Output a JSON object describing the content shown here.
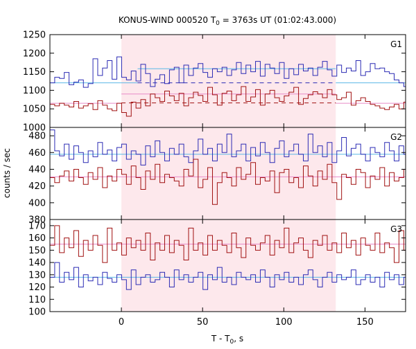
{
  "chart_data": {
    "type": "line",
    "title": {
      "prefix": "KONUS-WIND 000520 T",
      "sub": "0",
      "suffix": " = 3763s UT (01:02:43.000)"
    },
    "xlabel": {
      "prefix": "T - T",
      "sub": "0",
      "suffix": ", s"
    },
    "ylabel": "counts / sec",
    "xlim": [
      -44,
      175
    ],
    "xticks": [
      0,
      50,
      100,
      150
    ],
    "highlight_region": {
      "x": [
        0,
        132
      ],
      "color": "#fde8ec"
    },
    "colors": {
      "blue": "#2b2bb4",
      "red": "#a01010",
      "blue_fit": "#5bb8e6",
      "red_fit": "#e88ac8"
    },
    "panels": [
      {
        "label": "G1",
        "ylim": [
          1000,
          1250
        ],
        "yticks": [
          1000,
          1050,
          1100,
          1150,
          1200,
          1250
        ],
        "series": [
          {
            "color": "blue",
            "bin": 2.944,
            "start": -44,
            "values": [
              1120,
              1135,
              1132,
              1148,
              1115,
              1122,
              1128,
              1108,
              1118,
              1185,
              1140,
              1160,
              1180,
              1130,
              1190,
              1135,
              1128,
              1152,
              1125,
              1170,
              1145,
              1110,
              1130,
              1142,
              1118,
              1155,
              1162,
              1120,
              1168,
              1140,
              1160,
              1172,
              1148,
              1135,
              1158,
              1150,
              1162,
              1140,
              1155,
              1175,
              1145,
              1168,
              1150,
              1178,
              1138,
              1170,
              1160,
              1145,
              1175,
              1132,
              1158,
              1142,
              1170,
              1152,
              1160,
              1140,
              1162,
              1178,
              1155,
              1138,
              1168,
              1148,
              1160,
              1152,
              1180,
              1140,
              1150,
              1172,
              1158,
              1160,
              1150,
              1145,
              1128,
              1120,
              1110,
              1125,
              1118,
              1108,
              1122,
              1115,
              1112,
              1120,
              1118,
              1130
            ]
          },
          {
            "color": "red",
            "bin": 2.944,
            "start": -44,
            "values": [
              1062,
              1058,
              1065,
              1060,
              1055,
              1070,
              1052,
              1058,
              1064,
              1048,
              1072,
              1060,
              1050,
              1045,
              1065,
              1040,
              1030,
              1068,
              1052,
              1075,
              1058,
              1090,
              1080,
              1070,
              1098,
              1085,
              1072,
              1092,
              1058,
              1080,
              1095,
              1086,
              1070,
              1108,
              1088,
              1060,
              1092,
              1098,
              1072,
              1088,
              1110,
              1070,
              1082,
              1102,
              1060,
              1090,
              1100,
              1080,
              1070,
              1085,
              1095,
              1108,
              1062,
              1078,
              1088,
              1096,
              1090,
              1080,
              1102,
              1088,
              1075,
              1080,
              1095,
              1060,
              1072,
              1080,
              1070,
              1062,
              1058,
              1052,
              1048,
              1055,
              1062,
              1050,
              1068,
              1060,
              1055,
              1065,
              1070,
              1058,
              1060,
              1072,
              1066,
              1058
            ]
          }
        ],
        "fits": [
          {
            "color": "blue_fit",
            "dashed": false,
            "x": [
              -44,
              10
            ],
            "y": 1120
          },
          {
            "color": "blue_fit",
            "dashed": false,
            "x": [
              10,
              132
            ],
            "y": 1158
          },
          {
            "color": "blue_fit",
            "dashed": false,
            "x": [
              132,
              175
            ],
            "y": 1120
          },
          {
            "color": "red_fit",
            "dashed": false,
            "x": [
              -44,
              0
            ],
            "y": 1065
          },
          {
            "color": "red_fit",
            "dashed": false,
            "x": [
              0,
              132
            ],
            "y": 1090
          },
          {
            "color": "red_fit",
            "dashed": false,
            "x": [
              132,
              175
            ],
            "y": 1065
          },
          {
            "color": "blue",
            "dashed": true,
            "x": [
              10,
              132
            ],
            "y": 1120
          },
          {
            "color": "red",
            "dashed": true,
            "x": [
              0,
              132
            ],
            "y": 1066
          }
        ]
      },
      {
        "label": "G2",
        "ylim": [
          380,
          490
        ],
        "yticks": [
          380,
          400,
          420,
          440,
          460,
          480
        ],
        "series": [
          {
            "color": "blue",
            "bin": 2.944,
            "start": -44,
            "values": [
              487,
              462,
              456,
              470,
              452,
              468,
              460,
              448,
              462,
              455,
              472,
              458,
              463,
              450,
              466,
              470,
              452,
              462,
              458,
              445,
              468,
              455,
              474,
              460,
              450,
              465,
              458,
              470,
              455,
              448,
              462,
              476,
              458,
              465,
              450,
              470,
              460,
              482,
              455,
              462,
              470,
              450,
              466,
              456,
              472,
              460,
              448,
              465,
              474,
              455,
              462,
              470,
              458,
              450,
              482,
              460,
              468,
              455,
              472,
              448,
              462,
              478,
              456,
              465,
              470,
              458,
              450,
              466,
              460,
              455,
              472,
              462,
              450,
              468,
              458,
              464,
              470,
              455,
              460,
              458,
              472,
              465,
              478,
              462
            ]
          },
          {
            "color": "red",
            "bin": 2.944,
            "start": -44,
            "values": [
              430,
              424,
              432,
              438,
              426,
              440,
              430,
              422,
              436,
              428,
              442,
              418,
              432,
              426,
              440,
              434,
              422,
              444,
              430,
              416,
              438,
              428,
              446,
              424,
              434,
              430,
              426,
              420,
              440,
              432,
              452,
              418,
              428,
              442,
              398,
              424,
              436,
              430,
              420,
              442,
              428,
              434,
              448,
              422,
              430,
              426,
              438,
              412,
              436,
              440,
              424,
              430,
              418,
              444,
              432,
              420,
              438,
              428,
              446,
              424,
              404,
              434,
              430,
              422,
              440,
              436,
              418,
              432,
              428,
              442,
              420,
              436,
              426,
              430,
              440,
              424,
              434,
              428,
              420,
              438,
              430,
              444,
              426,
              436
            ]
          }
        ],
        "fits": [
          {
            "color": "blue_fit",
            "dashed": false,
            "x": [
              -44,
              175
            ],
            "y": 458
          },
          {
            "color": "red_fit",
            "dashed": false,
            "x": [
              -44,
              175
            ],
            "y": 431
          }
        ]
      },
      {
        "label": "G3",
        "ylim": [
          100,
          175
        ],
        "yticks": [
          100,
          110,
          120,
          130,
          140,
          150,
          160,
          170
        ],
        "series": [
          {
            "color": "blue",
            "bin": 2.944,
            "start": -44,
            "values": [
              128,
              140,
              124,
              132,
              126,
              136,
              120,
              130,
              125,
              128,
              122,
              132,
              127,
              124,
              130,
              126,
              118,
              134,
              122,
              128,
              130,
              124,
              126,
              132,
              128,
              120,
              134,
              126,
              130,
              124,
              128,
              132,
              118,
              130,
              126,
              136,
              124,
              128,
              122,
              132,
              128,
              126,
              130,
              124,
              134,
              128,
              120,
              130,
              126,
              132,
              124,
              128,
              122,
              130,
              134,
              126,
              120,
              128,
              132,
              124,
              130,
              126,
              128,
              134,
              122,
              126,
              130,
              124,
              128,
              120,
              132,
              126,
              130,
              122,
              128,
              124,
              134,
              126,
              120,
              130,
              128,
              124,
              118,
              126
            ]
          },
          {
            "color": "red",
            "bin": 2.944,
            "start": -44,
            "values": [
              154,
              170,
              148,
              160,
              152,
              166,
              145,
              158,
              150,
              162,
              154,
              140,
              168,
              150,
              156,
              146,
              160,
              152,
              158,
              150,
              164,
              142,
              156,
              150,
              162,
              148,
              158,
              154,
              142,
              168,
              150,
              156,
              146,
              162,
              150,
              158,
              154,
              148,
              164,
              152,
              144,
              160,
              154,
              150,
              156,
              162,
              146,
              158,
              152,
              168,
              148,
              156,
              160,
              150,
              144,
              158,
              154,
              162,
              150,
              156,
              148,
              164,
              152,
              158,
              146,
              160,
              154,
              150,
              164,
              148,
              156,
              152,
              140,
              166,
              150,
              158,
              146,
              170,
              152,
              148,
              160,
              156,
              142,
              150
            ]
          }
        ],
        "fits": [
          {
            "color": "blue_fit",
            "dashed": false,
            "x": [
              -44,
              175
            ],
            "y": 128
          },
          {
            "color": "red_fit",
            "dashed": false,
            "x": [
              -44,
              175
            ],
            "y": 155
          }
        ]
      }
    ]
  }
}
